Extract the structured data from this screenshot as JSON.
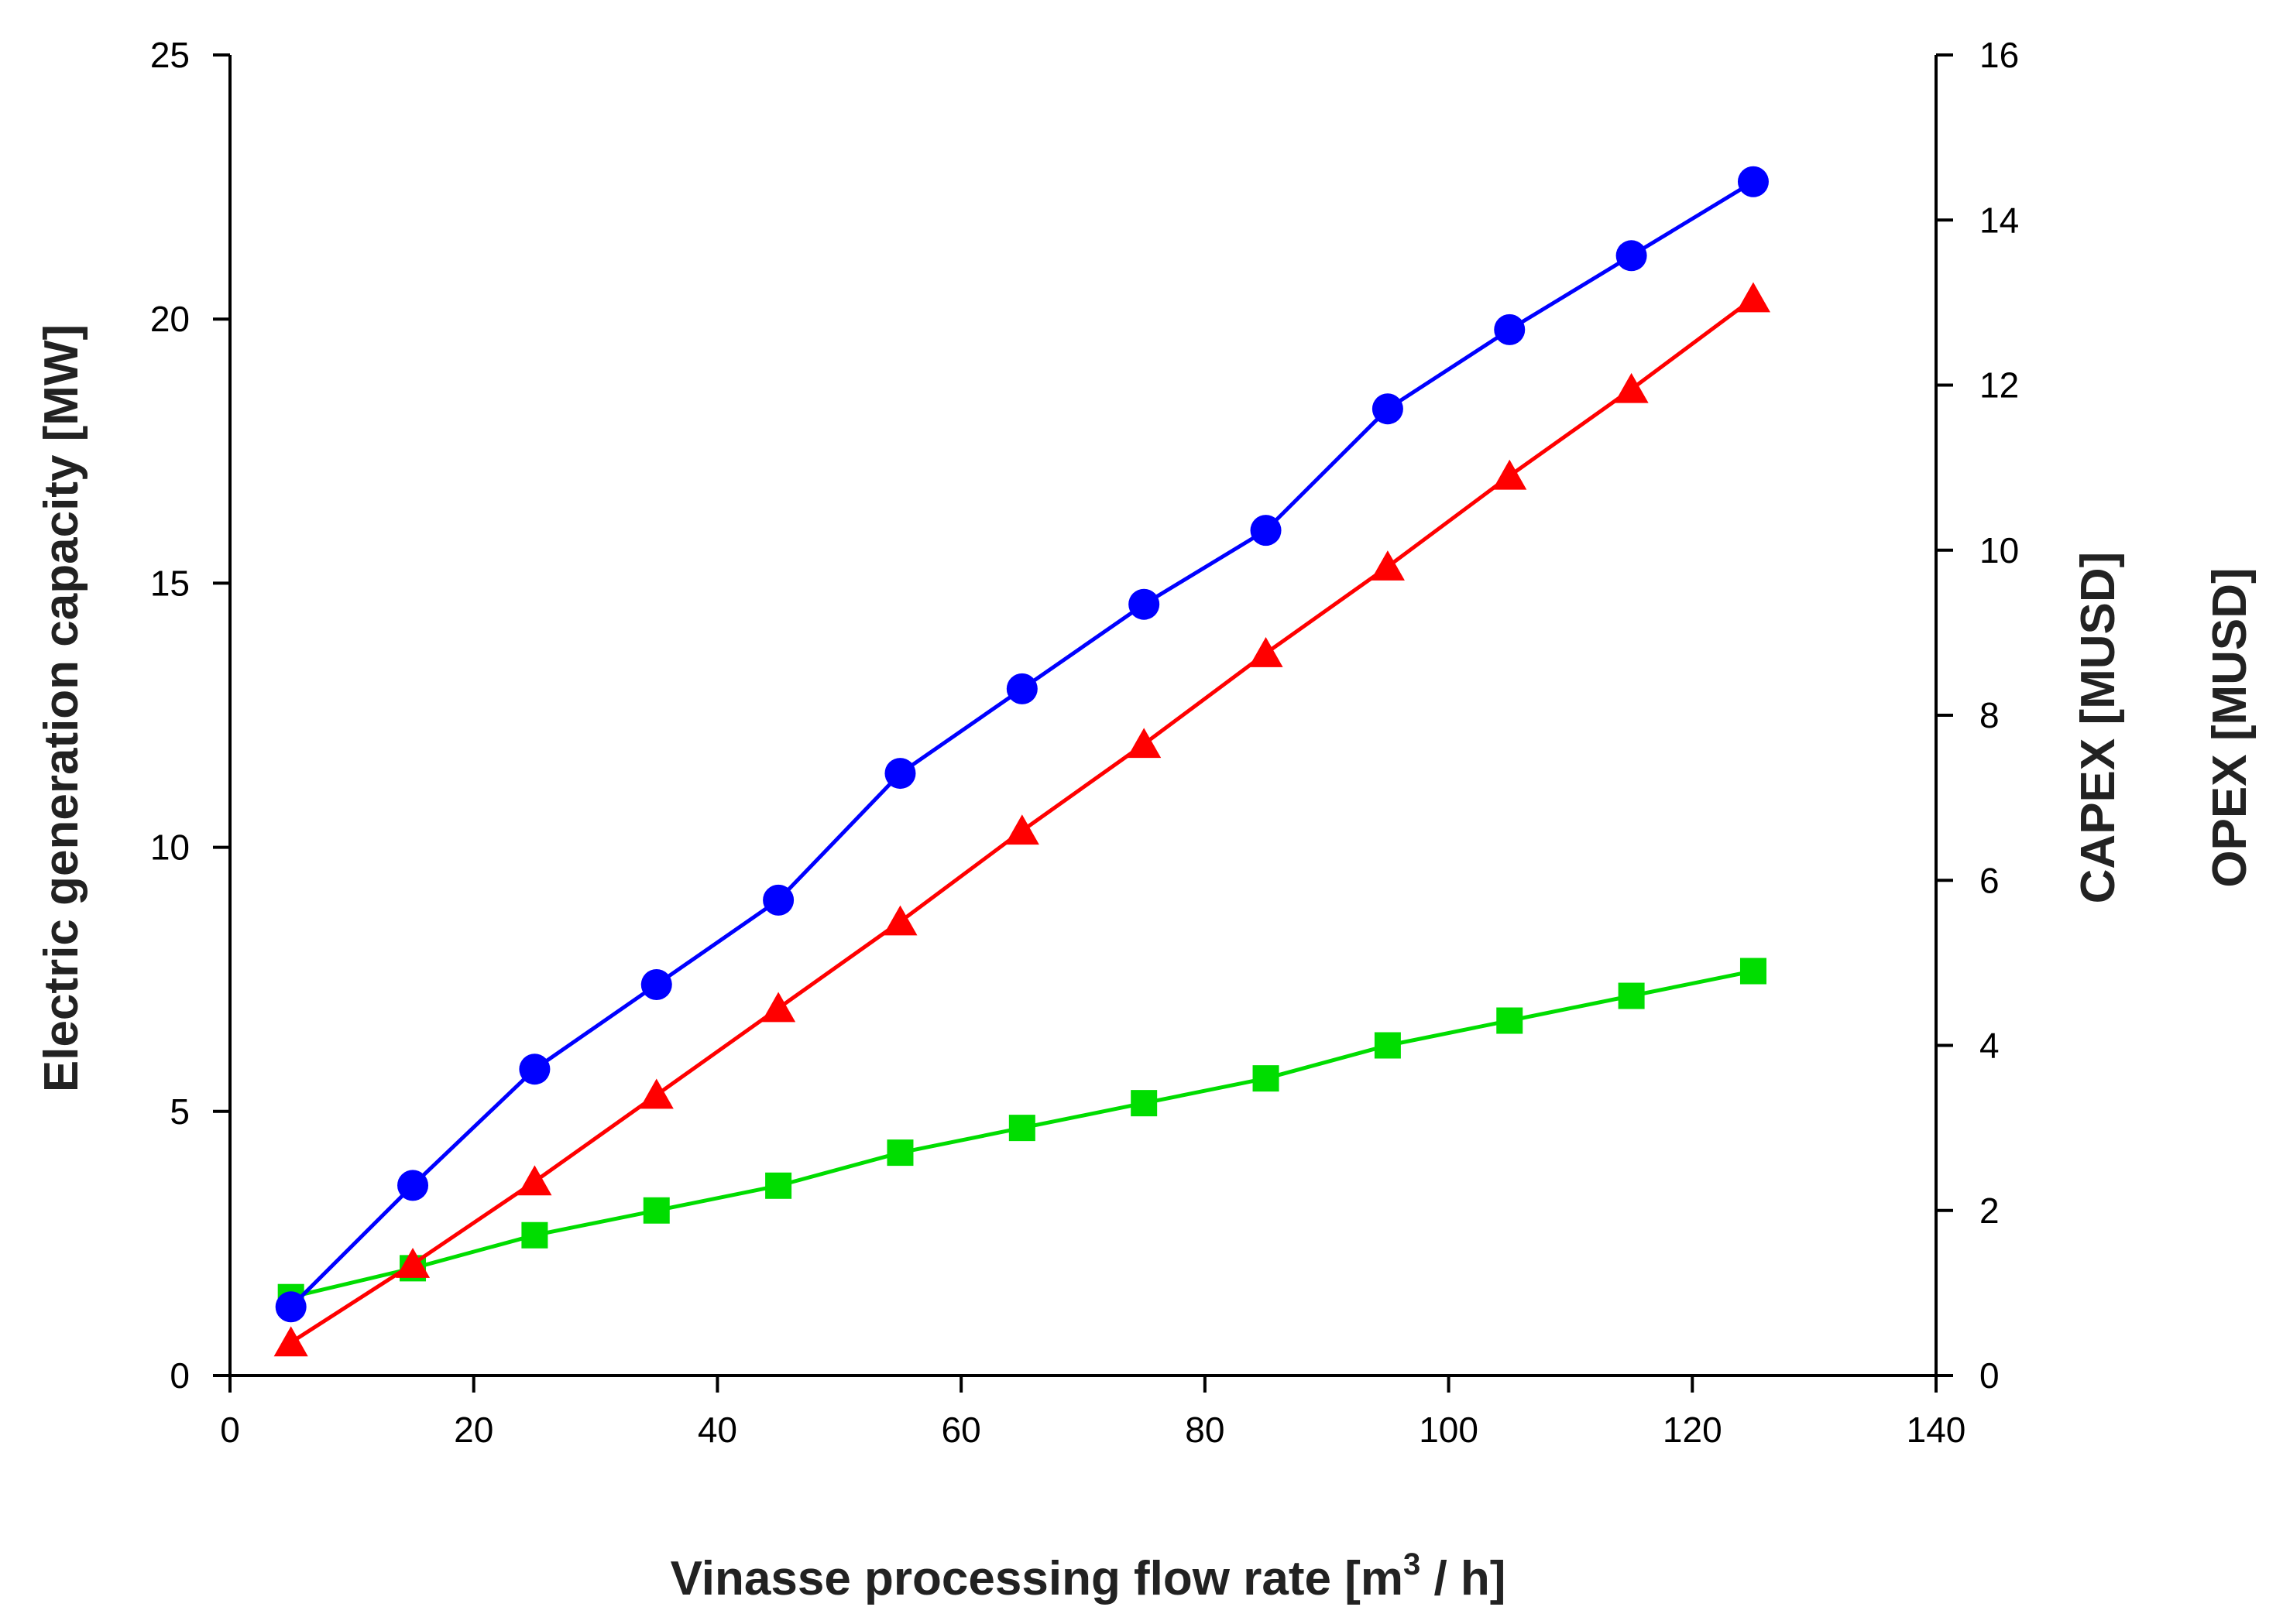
{
  "chart_data": {
    "type": "line",
    "title": "",
    "xlabel_main": "Vinasse processing flow rate [m",
    "xlabel_sup": "3",
    "xlabel_tail": " / h]",
    "ylabel_left": "Electric generation capacity [MW]",
    "ylabel_right_1": "CAPEX [MUSD]",
    "ylabel_right_2": "OPEX [MUSD]",
    "xlim": [
      0,
      140
    ],
    "ylim_left": [
      0,
      25
    ],
    "ylim_right": [
      0,
      16
    ],
    "x_ticks": [
      0,
      20,
      40,
      60,
      80,
      100,
      120,
      140
    ],
    "y_left_ticks": [
      0,
      5,
      10,
      15,
      20,
      25
    ],
    "y_right_ticks": [
      0,
      2,
      4,
      6,
      8,
      10,
      12,
      14,
      16
    ],
    "x": [
      5,
      15,
      25,
      35,
      45,
      55,
      65,
      75,
      85,
      95,
      105,
      115,
      125
    ],
    "series": [
      {
        "name": "Electric generation capacity",
        "axis": "left",
        "color": "#0000ff",
        "marker": "circle",
        "values": [
          1.3,
          3.6,
          5.8,
          7.4,
          9.0,
          11.4,
          13.0,
          14.6,
          16.0,
          18.3,
          19.8,
          21.2,
          22.6
        ]
      },
      {
        "name": "CAPEX",
        "axis": "right",
        "color": "#ff0000",
        "marker": "triangle",
        "values": [
          0.4,
          1.35,
          2.35,
          3.4,
          4.45,
          5.5,
          6.6,
          7.65,
          8.75,
          9.8,
          10.9,
          11.95,
          13.05
        ]
      },
      {
        "name": "OPEX",
        "axis": "right",
        "color": "#00dd00",
        "marker": "square",
        "values": [
          0.95,
          1.3,
          1.7,
          2.0,
          2.3,
          2.7,
          3.0,
          3.3,
          3.6,
          4.0,
          4.3,
          4.6,
          4.9
        ]
      }
    ]
  }
}
